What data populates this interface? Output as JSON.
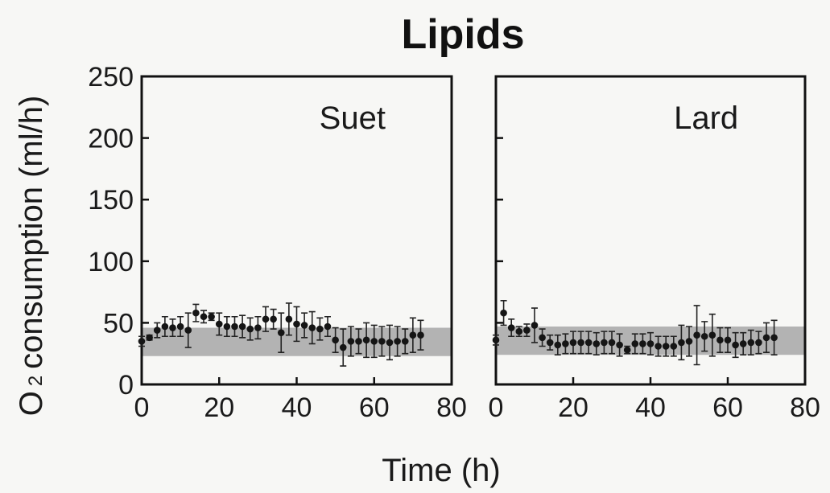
{
  "chart_data": {
    "type": "scatter",
    "title": "Lipids",
    "ylabel_main": "O",
    "ylabel_sub": "2",
    "ylabel_rest": "consumption (ml/h)",
    "xlabel": "Time (h)",
    "ylim": [
      0,
      250
    ],
    "xlim": [
      0,
      80
    ],
    "yticks": [
      "0",
      "50",
      "100",
      "150",
      "200",
      "250"
    ],
    "xticks": [
      "0",
      "20",
      "40",
      "60",
      "80"
    ],
    "panels": [
      {
        "label": "Suet",
        "band": [
          23,
          46
        ],
        "x": [
          0,
          2,
          4,
          6,
          8,
          10,
          12,
          14,
          16,
          18,
          20,
          22,
          24,
          26,
          28,
          30,
          32,
          34,
          36,
          38,
          40,
          42,
          44,
          46,
          48,
          50,
          52,
          54,
          56,
          58,
          60,
          62,
          64,
          66,
          68,
          70,
          72
        ],
        "y": [
          35,
          38,
          44,
          47,
          46,
          47,
          44,
          58,
          55,
          55,
          49,
          47,
          47,
          47,
          45,
          46,
          53,
          53,
          42,
          53,
          49,
          48,
          46,
          45,
          47,
          36,
          30,
          35,
          35,
          36,
          35,
          35,
          34,
          35,
          35,
          40,
          40
        ],
        "err": [
          4,
          2,
          6,
          8,
          7,
          8,
          14,
          7,
          5,
          3,
          9,
          8,
          8,
          9,
          9,
          9,
          10,
          8,
          16,
          13,
          14,
          10,
          13,
          9,
          8,
          10,
          15,
          12,
          10,
          14,
          13,
          12,
          14,
          12,
          10,
          14,
          12
        ]
      },
      {
        "label": "Lard",
        "band": [
          24,
          47
        ],
        "x": [
          0,
          2,
          4,
          6,
          8,
          10,
          12,
          14,
          16,
          18,
          20,
          22,
          24,
          26,
          28,
          30,
          32,
          34,
          36,
          38,
          40,
          42,
          44,
          46,
          48,
          50,
          52,
          54,
          56,
          58,
          60,
          62,
          64,
          66,
          68,
          70,
          72
        ],
        "y": [
          36,
          58,
          46,
          43,
          44,
          48,
          38,
          34,
          32,
          33,
          34,
          34,
          34,
          33,
          34,
          34,
          32,
          28,
          33,
          33,
          33,
          31,
          31,
          31,
          34,
          35,
          40,
          39,
          40,
          36,
          36,
          32,
          33,
          34,
          34,
          38,
          38
        ],
        "err": [
          4,
          10,
          7,
          4,
          5,
          14,
          7,
          6,
          8,
          8,
          9,
          9,
          9,
          9,
          9,
          9,
          9,
          3,
          8,
          8,
          9,
          8,
          8,
          8,
          14,
          12,
          24,
          12,
          17,
          10,
          10,
          10,
          9,
          10,
          9,
          12,
          14
        ]
      }
    ]
  }
}
